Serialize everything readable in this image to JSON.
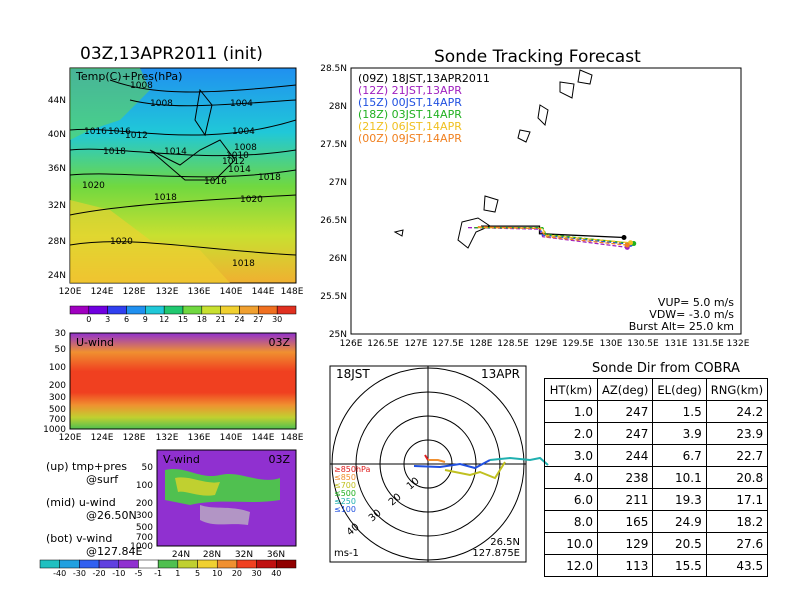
{
  "left_panel": {
    "map_title": "03Z,13APR2011 (init)",
    "map_label": "Temp(C)+Pres(hPa)",
    "lat_labels": [
      "44N",
      "40N",
      "36N",
      "32N",
      "28N",
      "24N"
    ],
    "lon_labels": [
      "120E",
      "124E",
      "128E",
      "132E",
      "136E",
      "140E",
      "144E",
      "148E"
    ],
    "isobar_labels": [
      "1008",
      "1008",
      "1004",
      "1016",
      "1016",
      "1012",
      "1018",
      "1014",
      "1004",
      "1008",
      "1010",
      "1012",
      "1014",
      "1016",
      "1018",
      "1020",
      "1018",
      "1020",
      "1020",
      "1018"
    ],
    "temp_colorbar": [
      "0",
      "3",
      "6",
      "9",
      "12",
      "15",
      "18",
      "21",
      "24",
      "27",
      "30"
    ],
    "u_title": "U-wind",
    "u_time": "03Z",
    "u_levels": [
      "30",
      "50",
      "100",
      "200",
      "300",
      "500",
      "700",
      "1000"
    ],
    "u_lon_labels": [
      "120E",
      "124E",
      "128E",
      "132E",
      "136E",
      "140E",
      "144E",
      "148E"
    ],
    "v_title": "V-wind",
    "v_time": "03Z",
    "v_levels": [
      "50",
      "100",
      "200",
      "300",
      "500",
      "700",
      "1000"
    ],
    "v_lat_labels": [
      "24N",
      "28N",
      "32N",
      "36N"
    ],
    "notes": [
      "(up) tmp+pres",
      "@surf",
      "(mid) u-wind",
      "@26.50N",
      "(bot) v-wind",
      "@127.84E"
    ],
    "wind_colorbar": [
      "-40",
      "-30",
      "-20",
      "-10",
      "-5",
      "-1",
      "1",
      "5",
      "10",
      "20",
      "30",
      "40"
    ]
  },
  "tracking": {
    "title": "Sonde Tracking Forecast",
    "legend": [
      {
        "text": "(09Z)  18JST,13APR2011",
        "color": "#000000"
      },
      {
        "text": "(12Z)  21JST,13APR",
        "color": "#a020c0"
      },
      {
        "text": "(15Z)  00JST,14APR",
        "color": "#2050e0"
      },
      {
        "text": "(18Z)  03JST,14APR",
        "color": "#20b020"
      },
      {
        "text": "(21Z)  06JST,14APR",
        "color": "#f0c020"
      },
      {
        "text": "(00Z)  09JST,14APR",
        "color": "#f08020"
      }
    ],
    "params": [
      "VUP= 5.0 m/s",
      "VDW= -3.0 m/s",
      "Burst Alt= 25.0 km"
    ],
    "y_labels": [
      "28.5N",
      "28N",
      "27.5N",
      "27N",
      "26.5N",
      "26N",
      "25.5N",
      "25N"
    ],
    "x_labels": [
      "126E",
      "126.5E",
      "127E",
      "127.5E",
      "128E",
      "128.5E",
      "129E",
      "129.5E",
      "130E",
      "130.5E",
      "131E",
      "131.5E",
      "132E"
    ]
  },
  "chart_data": {
    "type": "line",
    "title": "Sonde Tracking Forecast",
    "xlim": [
      126,
      132
    ],
    "ylim": [
      25,
      28.5
    ],
    "series": [
      {
        "name": "(09Z) 18JST,13APR2011",
        "x": [
          128.0,
          128.9,
          128.9,
          130.2
        ],
        "y": [
          26.42,
          26.42,
          26.32,
          26.27
        ]
      },
      {
        "name": "(12Z) 21JST,13APR",
        "x": [
          127.8,
          128.9,
          128.95,
          130.25
        ],
        "y": [
          26.4,
          26.38,
          26.28,
          26.14
        ]
      },
      {
        "name": "(15Z) 00JST,14APR",
        "x": [
          127.9,
          128.9,
          128.95,
          130.3
        ],
        "y": [
          26.4,
          26.4,
          26.3,
          26.18
        ]
      },
      {
        "name": "(18Z) 03JST,14APR",
        "x": [
          127.9,
          128.95,
          129.0,
          130.35
        ],
        "y": [
          26.4,
          26.4,
          26.31,
          26.19
        ]
      },
      {
        "name": "(21Z) 06JST,14APR",
        "x": [
          127.95,
          128.95,
          129.0,
          130.3
        ],
        "y": [
          26.4,
          26.39,
          26.3,
          26.2
        ]
      },
      {
        "name": "(00Z) 09JST,14APR",
        "x": [
          127.95,
          128.9,
          129.0,
          130.25
        ],
        "y": [
          26.41,
          26.39,
          26.28,
          26.17
        ]
      }
    ]
  },
  "polar": {
    "time": "18JST",
    "date": "13APR",
    "ring_labels": [
      "10",
      "20",
      "30",
      "40"
    ],
    "pressure_labels": [
      "≥850hPa",
      "≤850",
      "≤700",
      "≤500",
      "≤250",
      "≤100"
    ],
    "unit": "ms-1",
    "location": [
      "26.5N",
      "127.875E"
    ]
  },
  "sonde_table": {
    "title": "Sonde Dir from COBRA",
    "headers": [
      "HT(km)",
      "AZ(deg)",
      "EL(deg)",
      "RNG(km)"
    ],
    "rows": [
      [
        "1.0",
        "247",
        "1.5",
        "24.2"
      ],
      [
        "2.0",
        "247",
        "3.9",
        "23.9"
      ],
      [
        "3.0",
        "244",
        "6.7",
        "22.7"
      ],
      [
        "4.0",
        "238",
        "10.1",
        "20.8"
      ],
      [
        "6.0",
        "211",
        "19.3",
        "17.1"
      ],
      [
        "8.0",
        "165",
        "24.9",
        "18.2"
      ],
      [
        "10.0",
        "129",
        "20.5",
        "27.6"
      ],
      [
        "12.0",
        "113",
        "15.5",
        "43.5"
      ]
    ]
  },
  "colors": {
    "temp_scale": [
      "#a000c0",
      "#7000e0",
      "#3040f0",
      "#2090f0",
      "#20c8d8",
      "#20c870",
      "#70d840",
      "#c8e030",
      "#f0d030",
      "#f0a030",
      "#f07020",
      "#e03020"
    ],
    "wind_scale": [
      "#20c0c0",
      "#20a0e0",
      "#3060f0",
      "#6040e0",
      "#9030d0",
      "#ffffff",
      "#50c050",
      "#c0d030",
      "#f0d030",
      "#f09030",
      "#f04020",
      "#c01010"
    ]
  }
}
